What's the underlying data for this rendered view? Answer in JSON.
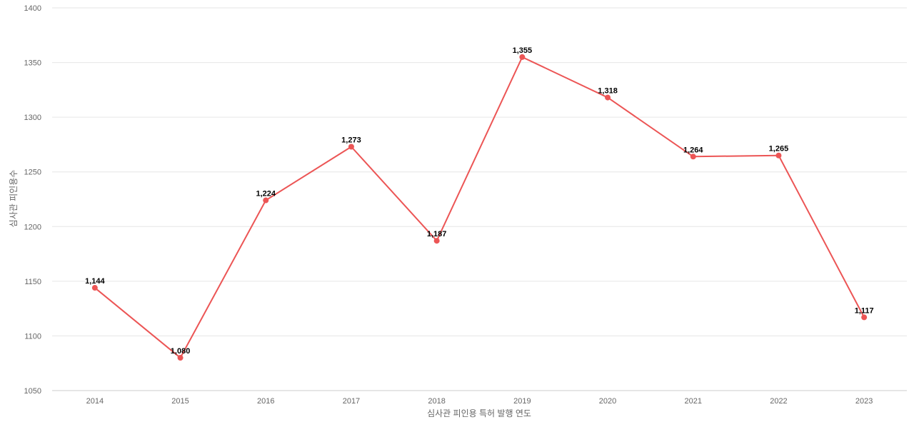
{
  "chart_data": {
    "type": "line",
    "title": "",
    "xlabel": "심사관 피인용 특허 발행 연도",
    "ylabel": "심사관 피인용수",
    "categories": [
      "2014",
      "2015",
      "2016",
      "2017",
      "2018",
      "2019",
      "2020",
      "2021",
      "2022",
      "2023"
    ],
    "values": [
      1144,
      1080,
      1224,
      1273,
      1187,
      1355,
      1318,
      1264,
      1265,
      1117
    ],
    "value_labels": [
      "1,144",
      "1,080",
      "1,224",
      "1,273",
      "1,187",
      "1,355",
      "1,318",
      "1,264",
      "1,265",
      "1,117"
    ],
    "ylim": [
      1050,
      1400
    ],
    "yticks": [
      "1050",
      "1100",
      "1150",
      "1200",
      "1250",
      "1300",
      "1350",
      "1400"
    ],
    "grid": true,
    "legend": "none",
    "line_color": "#ec5555",
    "grid_color": "#e6e6e6"
  }
}
